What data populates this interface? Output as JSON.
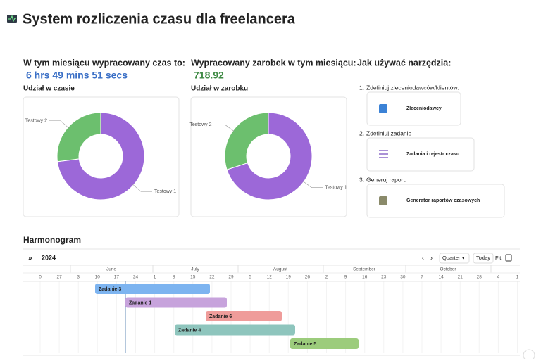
{
  "header": {
    "title": "System rozliczenia czasu dla freelancera"
  },
  "summary": {
    "time_heading": "W tym miesiącu wypracowany czas to:",
    "time_value": "6 hrs 49 mins 51 secs",
    "earnings_heading": "Wypracowany zarobek w tym miesiącu:",
    "earnings_value": "718.92"
  },
  "chart_data": [
    {
      "type": "pie",
      "donut": true,
      "title": "Udział w czasie",
      "categories": [
        "Testowy 1",
        "Testowy 2"
      ],
      "values": [
        73,
        27
      ],
      "colors": [
        "#9c68d8",
        "#6cbf6e"
      ]
    },
    {
      "type": "pie",
      "donut": true,
      "title": "Udział w zarobku",
      "categories": [
        "Testowy 1",
        "Testowy 2"
      ],
      "values": [
        70,
        30
      ],
      "colors": [
        "#9c68d8",
        "#6cbf6e"
      ]
    }
  ],
  "guide": {
    "heading": "Jak używać narzędzia:",
    "steps": [
      {
        "number": "1.",
        "text": "Zdefiniuj zleceniodawców/klientów:",
        "button": "Zleceniodawcy"
      },
      {
        "number": "2.",
        "text": "Zdefiniuj zadanie",
        "button": "Zadania i rejestr czasu"
      },
      {
        "number": "3.",
        "text": "Generuj raport:",
        "button": "Generator raportów czasowych"
      }
    ]
  },
  "timeline": {
    "heading": "Harmonogram",
    "expand": "»",
    "year": "2024",
    "prev": "‹",
    "next": "›",
    "view": "Quarter",
    "today": "Today",
    "fit": "Fit",
    "months": [
      "June",
      "July",
      "August",
      "September",
      "October"
    ],
    "days": [
      0,
      27,
      3,
      10,
      17,
      24,
      1,
      8,
      15,
      22,
      29,
      5,
      12,
      19,
      26,
      2,
      9,
      16,
      23,
      30,
      7,
      14,
      21,
      28,
      4,
      1
    ],
    "tasks": [
      {
        "name": "Zadanie 3",
        "color": "#7db4f0"
      },
      {
        "name": "Zadanie 1",
        "color": "#c7a3dc"
      },
      {
        "name": "Zadanie 6",
        "color": "#ef9c9a"
      },
      {
        "name": "Zadanie 4",
        "color": "#8ec5bd"
      },
      {
        "name": "Zadanie 5",
        "color": "#9ccc7c"
      }
    ]
  }
}
